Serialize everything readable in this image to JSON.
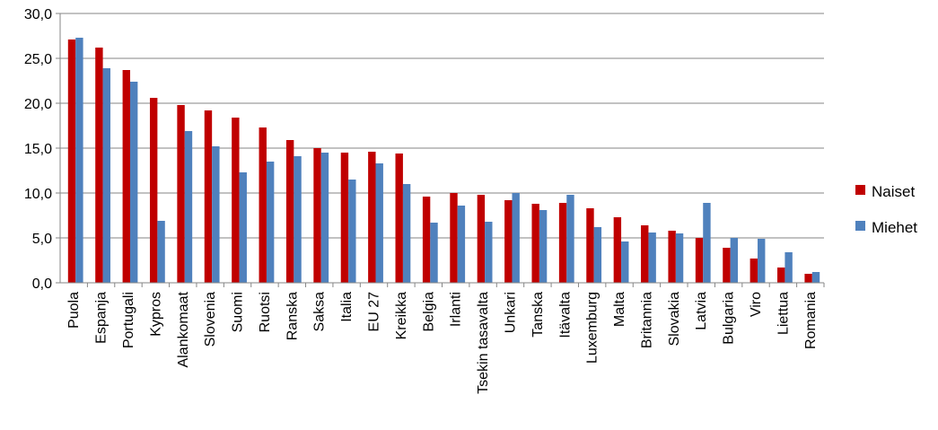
{
  "chart_data": {
    "type": "bar",
    "categories": [
      "Puola",
      "Espanja",
      "Portugali",
      "Kypros",
      "Alankomaat",
      "Slovenia",
      "Suomi",
      "Ruotsi",
      "Ranska",
      "Saksa",
      "Italia",
      "EU 27",
      "Kreikka",
      "Belgia",
      "Irlanti",
      "Tsekin tasavalta",
      "Unkari",
      "Tanska",
      "Itävalta",
      "Luxemburg",
      "Malta",
      "Britannia",
      "Slovakia",
      "Latvia",
      "Bulgaria",
      "Viro",
      "Liettua",
      "Romania"
    ],
    "series": [
      {
        "name": "Naiset",
        "color": "#C00000",
        "values": [
          27.1,
          26.2,
          23.7,
          20.6,
          19.8,
          19.2,
          18.4,
          17.3,
          15.9,
          15.0,
          14.5,
          14.6,
          14.4,
          9.6,
          10.0,
          9.8,
          9.2,
          8.8,
          8.9,
          8.3,
          7.3,
          6.4,
          5.8,
          5.0,
          3.9,
          2.7,
          1.7,
          1.0
        ]
      },
      {
        "name": "Miehet",
        "color": "#4F81BD",
        "values": [
          27.3,
          23.9,
          22.4,
          6.9,
          16.9,
          15.2,
          12.3,
          13.5,
          14.1,
          14.5,
          11.5,
          13.3,
          11.0,
          6.7,
          8.6,
          6.8,
          10.0,
          8.1,
          9.8,
          6.2,
          4.6,
          5.6,
          5.5,
          8.9,
          5.0,
          4.9,
          3.4,
          1.2
        ]
      }
    ],
    "yticks": [
      "0,0",
      "5,0",
      "10,0",
      "15,0",
      "20,0",
      "25,0",
      "30,0"
    ],
    "ylim": [
      0,
      30
    ],
    "grid": true,
    "legend": "right"
  }
}
